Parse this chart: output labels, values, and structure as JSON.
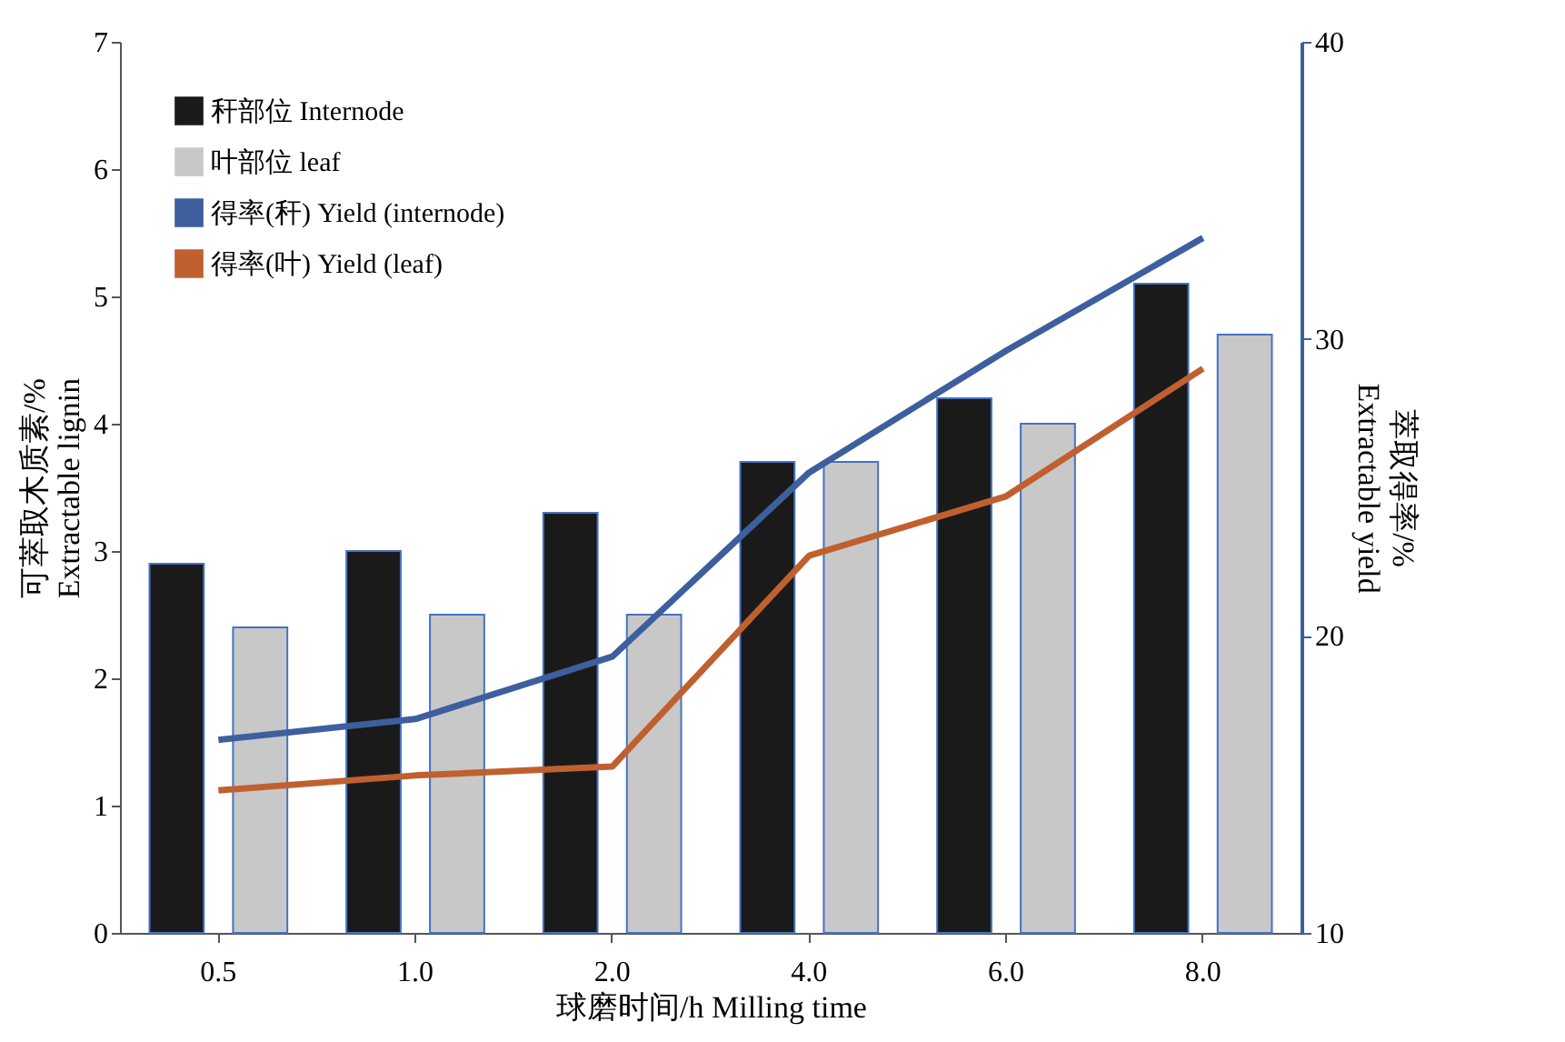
{
  "chart_data": {
    "type": "bar",
    "xlabel": "球磨时间/h Milling time",
    "ylabel": "可萃取木质素/%\nExtractable lignin",
    "y2label": "萃取得率/%\nExtractable yield",
    "categories": [
      "0.5",
      "1.0",
      "2.0",
      "4.0",
      "6.0",
      "8.0"
    ],
    "series": [
      {
        "name": "秆部位 Internode",
        "color": "#1a1a1a",
        "values": [
          2.9,
          3.0,
          3.3,
          3.7,
          4.2,
          5.1
        ]
      },
      {
        "name": "叶部位 leaf",
        "color": "#c8c8c8",
        "values": [
          2.4,
          2.5,
          2.5,
          3.7,
          4.0,
          4.7
        ]
      },
      {
        "name": "得率(秆) Yield (internode)",
        "type": "line",
        "axis": "y2",
        "color": "#3d5f9e",
        "values": [
          16.5,
          17.2,
          19.3,
          25.5,
          29.6,
          33.4
        ]
      },
      {
        "name": "得率(叶) Yield (leaf)",
        "type": "line",
        "axis": "y2",
        "color": "#c0602f",
        "values": [
          14.8,
          15.3,
          15.6,
          22.7,
          24.7,
          29.0
        ]
      }
    ],
    "ylim": [
      0,
      7
    ],
    "yticks": [
      0,
      1,
      2,
      3,
      4,
      5,
      6,
      7
    ],
    "y2lim": [
      10,
      40
    ],
    "y2ticks": [
      10,
      20,
      30,
      40
    ],
    "legend": "top left",
    "grid": false
  }
}
